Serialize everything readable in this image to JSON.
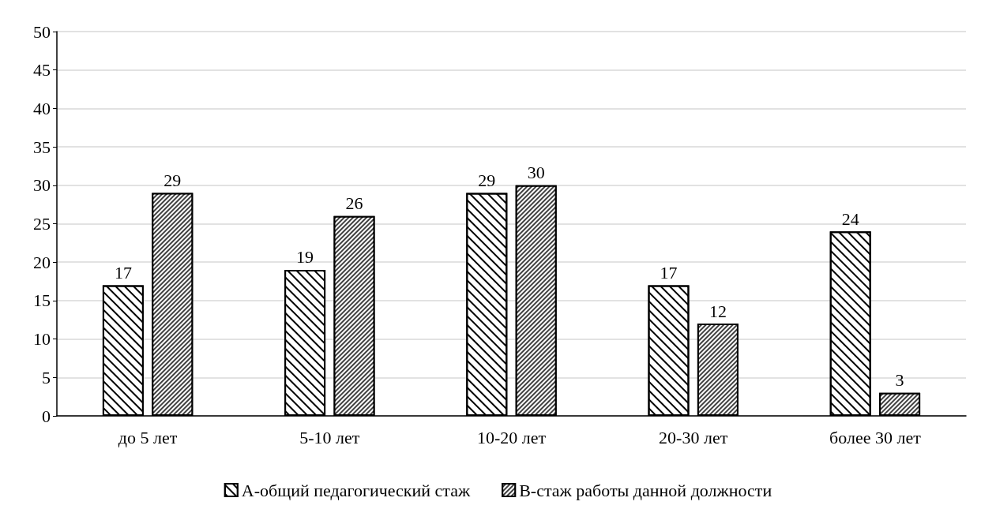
{
  "chart_data": {
    "type": "bar",
    "categories": [
      "до 5 лет",
      "5-10 лет",
      "10-20 лет",
      "20-30 лет",
      "более 30 лет"
    ],
    "series": [
      {
        "name": "А-общий педагогический стаж",
        "color": "#ffffff",
        "values": [
          17,
          19,
          29,
          17,
          24
        ]
      },
      {
        "name": "В-стаж работы данной должности",
        "color": "#404040",
        "values": [
          29,
          26,
          30,
          12,
          3
        ]
      }
    ],
    "ylim": [
      0,
      50
    ],
    "yticks": [
      0,
      5,
      10,
      15,
      20,
      25,
      30,
      35,
      40,
      45,
      50
    ],
    "grid": "y",
    "legend": "bottom",
    "data_labels": true
  }
}
